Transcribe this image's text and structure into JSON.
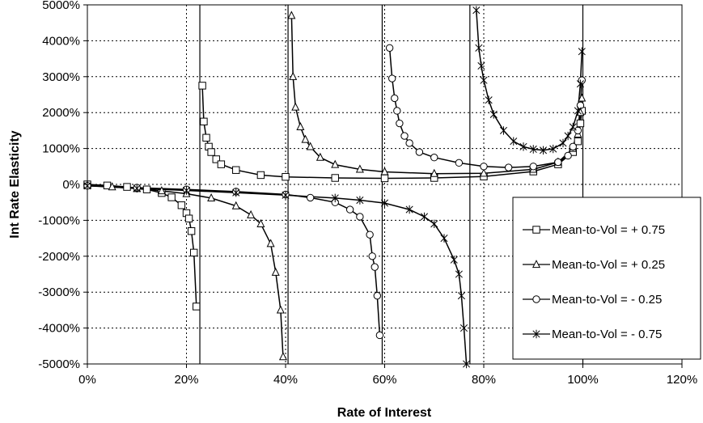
{
  "chart_data": {
    "type": "scatter",
    "title": "",
    "xlabel": "Rate of Interest",
    "ylabel": "Int Rate Elasticity",
    "xlim": [
      0,
      1.2
    ],
    "ylim": [
      -5000,
      5000
    ],
    "x_ticks": [
      0,
      0.2,
      0.4,
      0.6,
      0.8,
      1.0,
      1.2
    ],
    "x_tick_labels": [
      "0%",
      "20%",
      "40%",
      "60%",
      "80%",
      "100%",
      "120%"
    ],
    "y_ticks": [
      -5000,
      -4000,
      -3000,
      -2000,
      -1000,
      0,
      1000,
      2000,
      3000,
      4000,
      5000
    ],
    "y_tick_labels": [
      "-5000%",
      "-4000%",
      "-3000%",
      "-2000%",
      "-1000%",
      "0%",
      "1000%",
      "2000%",
      "3000%",
      "4000%",
      "5000%"
    ],
    "grid": "dotted",
    "legend_position": "bottom-right",
    "vertical_asymptotes": [
      0.227,
      0.405,
      0.595,
      0.772,
      1.0
    ],
    "series": [
      {
        "name": "Mean-to-Vol = + 0.75",
        "marker": "square",
        "pole": 0.227,
        "segments": [
          {
            "x": [
              0,
              0.04,
              0.08,
              0.12,
              0.15,
              0.17,
              0.19,
              0.2,
              0.205,
              0.21,
              0.215,
              0.22
            ],
            "y": [
              0,
              -30,
              -70,
              -140,
              -240,
              -360,
              -580,
              -800,
              -950,
              -1300,
              -1900,
              -3400
            ]
          },
          {
            "x": [
              0.232,
              0.235,
              0.24,
              0.245,
              0.25,
              0.26,
              0.27,
              0.3,
              0.35,
              0.4,
              0.5,
              0.6,
              0.7,
              0.8,
              0.9,
              0.95,
              0.98,
              0.99,
              0.995,
              0.998
            ],
            "y": [
              2750,
              1750,
              1300,
              1050,
              900,
              700,
              560,
              400,
              260,
              210,
              180,
              170,
              180,
              220,
              360,
              560,
              900,
              1200,
              1700,
              2050
            ]
          }
        ]
      },
      {
        "name": "Mean-to-Vol = + 0.25",
        "marker": "triangle",
        "pole": 0.405,
        "segments": [
          {
            "x": [
              0,
              0.05,
              0.1,
              0.15,
              0.2,
              0.25,
              0.3,
              0.33,
              0.35,
              0.37,
              0.38,
              0.39,
              0.395
            ],
            "y": [
              -30,
              -70,
              -120,
              -180,
              -260,
              -380,
              -600,
              -850,
              -1100,
              -1650,
              -2450,
              -3500,
              -4800
            ]
          },
          {
            "x": [
              0.412,
              0.415,
              0.42,
              0.43,
              0.44,
              0.45,
              0.47,
              0.5,
              0.55,
              0.6,
              0.7,
              0.8,
              0.9,
              0.95,
              0.98,
              0.99,
              0.995,
              0.998
            ],
            "y": [
              4700,
              3000,
              2150,
              1600,
              1250,
              1050,
              750,
              550,
              420,
              350,
              300,
              310,
              420,
              620,
              1000,
              1400,
              2000,
              2400
            ]
          }
        ]
      },
      {
        "name": "Mean-to-Vol = - 0.25",
        "marker": "circle",
        "pole": 0.595,
        "segments": [
          {
            "x": [
              0,
              0.1,
              0.2,
              0.3,
              0.4,
              0.45,
              0.5,
              0.53,
              0.55,
              0.57,
              0.575,
              0.58,
              0.585,
              0.59
            ],
            "y": [
              -40,
              -90,
              -140,
              -200,
              -280,
              -370,
              -500,
              -700,
              -900,
              -1400,
              -2000,
              -2300,
              -3100,
              -4200
            ]
          },
          {
            "x": [
              0.61,
              0.615,
              0.62,
              0.625,
              0.63,
              0.64,
              0.65,
              0.67,
              0.7,
              0.75,
              0.8,
              0.85,
              0.9,
              0.95,
              0.97,
              0.98,
              0.99,
              0.995,
              0.998
            ],
            "y": [
              3800,
              2950,
              2400,
              2050,
              1700,
              1350,
              1150,
              900,
              750,
              600,
              500,
              470,
              500,
              620,
              800,
              1050,
              1500,
              2200,
              2900
            ]
          }
        ]
      },
      {
        "name": "Mean-to-Vol = - 0.75",
        "marker": "star",
        "pole": 0.772,
        "segments": [
          {
            "x": [
              0,
              0.1,
              0.2,
              0.3,
              0.4,
              0.5,
              0.55,
              0.6,
              0.65,
              0.68,
              0.7,
              0.72,
              0.74,
              0.75,
              0.755,
              0.76,
              0.765
            ],
            "y": [
              -40,
              -110,
              -170,
              -230,
              -300,
              -380,
              -440,
              -520,
              -700,
              -900,
              -1100,
              -1500,
              -2100,
              -2500,
              -3100,
              -4000,
              -5000
            ]
          },
          {
            "x": [
              0.785,
              0.79,
              0.795,
              0.8,
              0.81,
              0.82,
              0.84,
              0.86,
              0.88,
              0.9,
              0.92,
              0.94,
              0.96,
              0.97,
              0.98,
              0.99,
              0.995,
              0.998
            ],
            "y": [
              4850,
              3800,
              3300,
              2900,
              2350,
              1950,
              1500,
              1200,
              1050,
              980,
              950,
              990,
              1150,
              1350,
              1600,
              2050,
              2800,
              3700
            ]
          }
        ]
      }
    ]
  }
}
